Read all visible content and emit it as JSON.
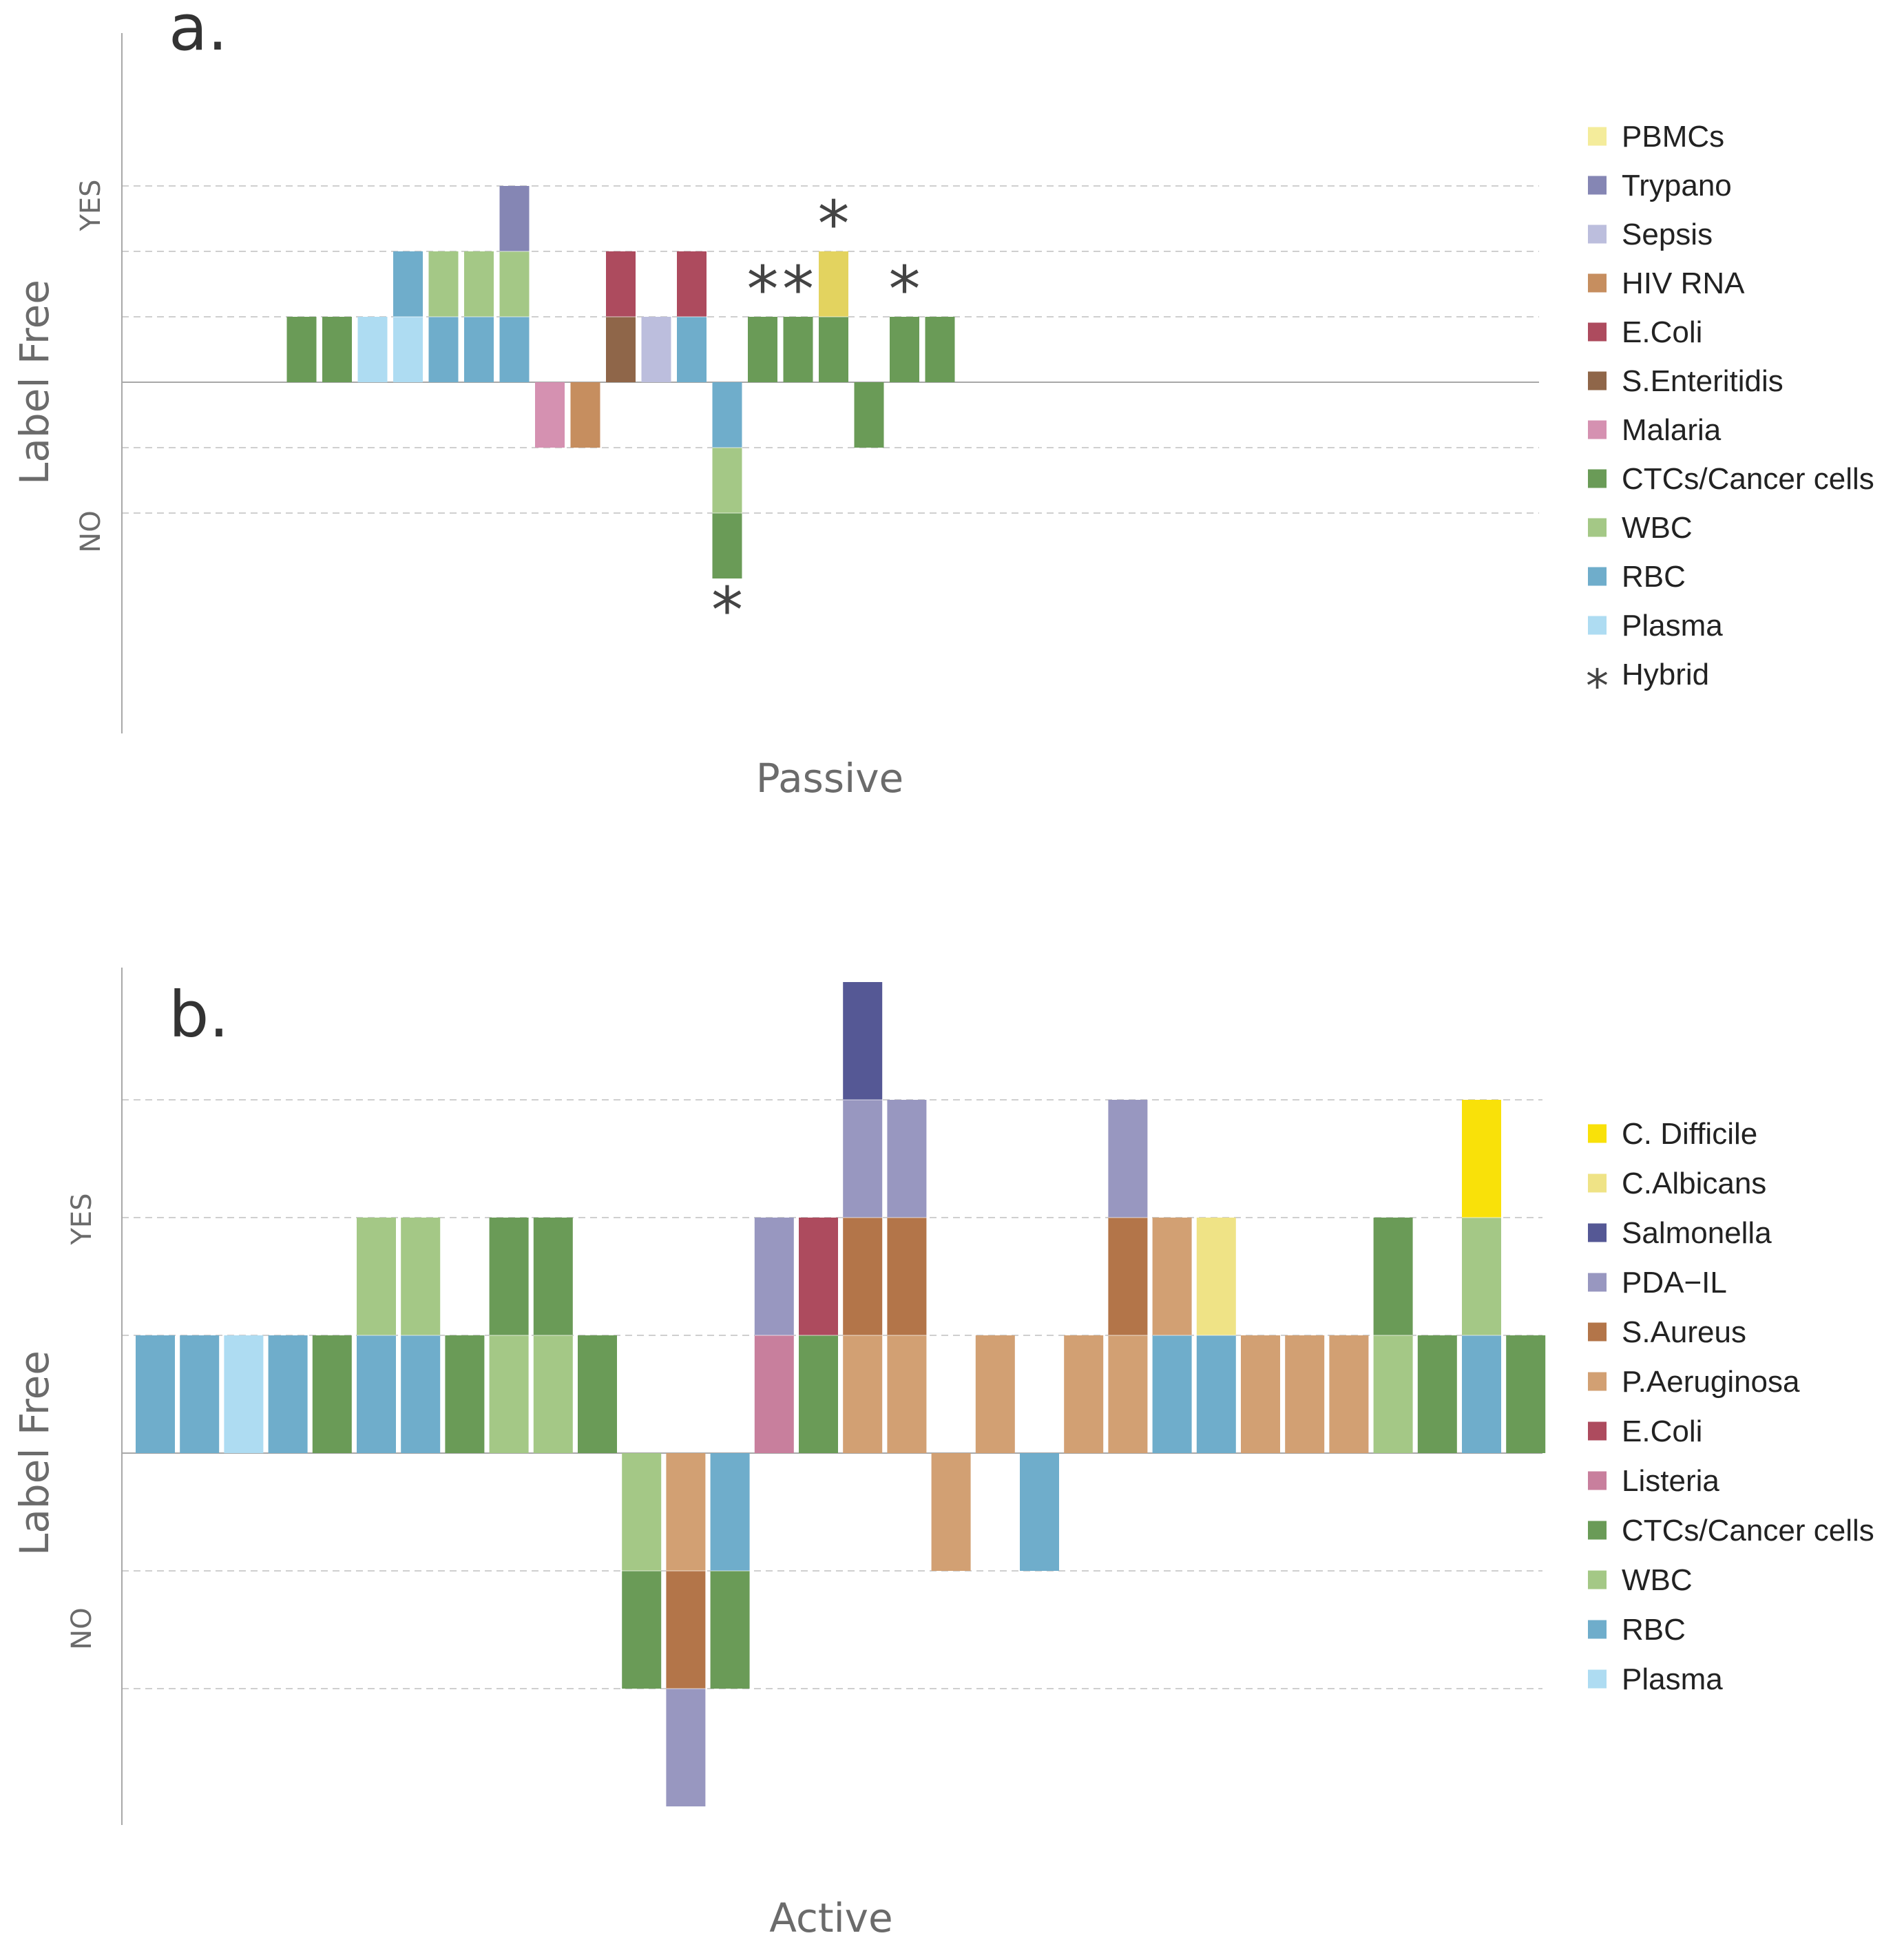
{
  "colors": {
    "PBMCs": "#f4ec9b",
    "Trypano": "#8586b4",
    "Sepsis": "#bcbedd",
    "HIV RNA": "#c68e5f",
    "E.Coli": "#ad4b5e",
    "S.Enteritidis": "#8f6649",
    "Malaria": "#d591b1",
    "CTCs/Cancer cells": "#6a9b57",
    "WBC": "#a4c886",
    "RBC": "#6fadcb",
    "Plasma": "#aedcf2",
    "PBMCs_hybrid": "#e3d35f",
    "C. Difficile": "#f9e109",
    "C.Albicans": "#efe386",
    "Salmonella": "#555895",
    "PDA−IL": "#9897c0",
    "S.Aureus": "#b37549",
    "P.Aeruginosa": "#d2a073",
    "Listeria": "#c87f9d",
    "axis": "#a8a8a8",
    "grid": "#cfcfcf"
  },
  "chart_data": [
    {
      "panel": "a.",
      "type": "bar",
      "stacked": true,
      "xlabel": "Passive",
      "ylabel": "Label Free",
      "y_ticks": [
        "YES",
        "NO"
      ],
      "ylim": [
        -3,
        3
      ],
      "n_slots": 22,
      "legend_position": "right",
      "legend": [
        {
          "label": "PBMCs",
          "color_key": "PBMCs"
        },
        {
          "label": "Trypano",
          "color_key": "Trypano"
        },
        {
          "label": "Sepsis",
          "color_key": "Sepsis"
        },
        {
          "label": "HIV RNA",
          "color_key": "HIV RNA"
        },
        {
          "label": "E.Coli",
          "color_key": "E.Coli"
        },
        {
          "label": "S.Enteritidis",
          "color_key": "S.Enteritidis"
        },
        {
          "label": "Malaria",
          "color_key": "Malaria"
        },
        {
          "label": "CTCs/Cancer cells",
          "color_key": "CTCs/Cancer cells"
        },
        {
          "label": "WBC",
          "color_key": "WBC"
        },
        {
          "label": "RBC",
          "color_key": "RBC"
        },
        {
          "label": "Plasma",
          "color_key": "Plasma"
        },
        {
          "label": "Hybrid",
          "marker": "*"
        }
      ],
      "bars": [
        {
          "slot": 3,
          "stack": [
            "CTCs/Cancer cells"
          ]
        },
        {
          "slot": 4,
          "stack": [
            "CTCs/Cancer cells"
          ]
        },
        {
          "slot": 5,
          "stack": [
            "Plasma"
          ]
        },
        {
          "slot": 6,
          "stack": [
            "Plasma",
            "RBC"
          ]
        },
        {
          "slot": 7,
          "stack": [
            "RBC",
            "WBC"
          ]
        },
        {
          "slot": 8,
          "stack": [
            "RBC",
            "WBC"
          ]
        },
        {
          "slot": 9,
          "stack": [
            "RBC",
            "WBC",
            "Trypano"
          ]
        },
        {
          "slot": 10,
          "stack": [
            "Malaria"
          ],
          "direction": "down"
        },
        {
          "slot": 11,
          "stack": [
            "HIV RNA"
          ],
          "direction": "down"
        },
        {
          "slot": 12,
          "stack": [
            "S.Enteritidis",
            "E.Coli"
          ]
        },
        {
          "slot": 13,
          "stack": [
            "Sepsis"
          ]
        },
        {
          "slot": 14,
          "stack": [
            "RBC",
            "E.Coli"
          ]
        },
        {
          "slot": 15,
          "stack": [
            "RBC",
            "WBC",
            "CTCs/Cancer cells"
          ],
          "direction": "down",
          "hybrid": true
        },
        {
          "slot": 16,
          "stack": [
            "CTCs/Cancer cells"
          ],
          "hybrid": true
        },
        {
          "slot": 17,
          "stack": [
            "CTCs/Cancer cells"
          ],
          "hybrid": true
        },
        {
          "slot": 18,
          "stack": [
            "CTCs/Cancer cells",
            "PBMCs_hybrid"
          ],
          "hybrid": true
        },
        {
          "slot": 19,
          "stack": [
            "CTCs/Cancer cells"
          ],
          "direction": "down"
        },
        {
          "slot": 20,
          "stack": [
            "CTCs/Cancer cells"
          ],
          "hybrid": true
        },
        {
          "slot": 21,
          "stack": [
            "CTCs/Cancer cells"
          ]
        }
      ]
    },
    {
      "panel": "b.",
      "type": "bar",
      "stacked": true,
      "xlabel": "Active",
      "ylabel": "Label Free",
      "y_ticks": [
        "YES",
        "NO"
      ],
      "ylim": [
        -3,
        3
      ],
      "n_slots": 32,
      "legend_position": "right",
      "legend": [
        {
          "label": "C. Difficile",
          "color_key": "C. Difficile"
        },
        {
          "label": "C.Albicans",
          "color_key": "C.Albicans"
        },
        {
          "label": "Salmonella",
          "color_key": "Salmonella"
        },
        {
          "label": "PDA−IL",
          "color_key": "PDA−IL"
        },
        {
          "label": "S.Aureus",
          "color_key": "S.Aureus"
        },
        {
          "label": "P.Aeruginosa",
          "color_key": "P.Aeruginosa"
        },
        {
          "label": "E.Coli",
          "color_key": "E.Coli"
        },
        {
          "label": "Listeria",
          "color_key": "Listeria"
        },
        {
          "label": "CTCs/Cancer cells",
          "color_key": "CTCs/Cancer cells"
        },
        {
          "label": "WBC",
          "color_key": "WBC"
        },
        {
          "label": "RBC",
          "color_key": "RBC"
        },
        {
          "label": "Plasma",
          "color_key": "Plasma"
        }
      ],
      "bars": [
        {
          "slot": 0,
          "stack": [
            "RBC"
          ]
        },
        {
          "slot": 1,
          "stack": [
            "RBC"
          ]
        },
        {
          "slot": 2,
          "stack": [
            "Plasma"
          ]
        },
        {
          "slot": 3,
          "stack": [
            "RBC"
          ]
        },
        {
          "slot": 4,
          "stack": [
            "CTCs/Cancer cells"
          ]
        },
        {
          "slot": 5,
          "stack": [
            "RBC",
            "WBC"
          ]
        },
        {
          "slot": 6,
          "stack": [
            "RBC",
            "WBC"
          ]
        },
        {
          "slot": 7,
          "stack": [
            "CTCs/Cancer cells"
          ]
        },
        {
          "slot": 8,
          "stack": [
            "WBC",
            "CTCs/Cancer cells"
          ]
        },
        {
          "slot": 9,
          "stack": [
            "WBC",
            "CTCs/Cancer cells"
          ]
        },
        {
          "slot": 10,
          "stack": [
            "CTCs/Cancer cells"
          ]
        },
        {
          "slot": 11,
          "stack": [
            "WBC",
            "CTCs/Cancer cells"
          ],
          "direction": "down"
        },
        {
          "slot": 12,
          "stack": [
            "P.Aeruginosa",
            "S.Aureus",
            "PDA−IL"
          ],
          "direction": "down"
        },
        {
          "slot": 13,
          "stack": [
            "RBC",
            "CTCs/Cancer cells"
          ],
          "direction": "down"
        },
        {
          "slot": 14,
          "stack": [
            "Listeria",
            "PDA−IL"
          ]
        },
        {
          "slot": 15,
          "stack": [
            "CTCs/Cancer cells",
            "E.Coli"
          ]
        },
        {
          "slot": 16,
          "stack": [
            "P.Aeruginosa",
            "S.Aureus",
            "PDA−IL",
            "Salmonella"
          ]
        },
        {
          "slot": 17,
          "stack": [
            "P.Aeruginosa",
            "S.Aureus",
            "PDA−IL"
          ]
        },
        {
          "slot": 18,
          "stack": [
            "P.Aeruginosa"
          ],
          "direction": "down"
        },
        {
          "slot": 19,
          "stack": [
            "P.Aeruginosa"
          ]
        },
        {
          "slot": 20,
          "stack": [
            "RBC"
          ],
          "direction": "down"
        },
        {
          "slot": 21,
          "stack": [
            "P.Aeruginosa"
          ]
        },
        {
          "slot": 22,
          "stack": [
            "P.Aeruginosa",
            "S.Aureus",
            "PDA−IL"
          ]
        },
        {
          "slot": 23,
          "stack": [
            "RBC",
            "P.Aeruginosa"
          ]
        },
        {
          "slot": 24,
          "stack": [
            "RBC",
            "C.Albicans"
          ]
        },
        {
          "slot": 25,
          "stack": [
            "P.Aeruginosa"
          ]
        },
        {
          "slot": 26,
          "stack": [
            "P.Aeruginosa"
          ]
        },
        {
          "slot": 27,
          "stack": [
            "P.Aeruginosa"
          ]
        },
        {
          "slot": 28,
          "stack": [
            "WBC",
            "CTCs/Cancer cells"
          ]
        },
        {
          "slot": 29,
          "stack": [
            "CTCs/Cancer cells"
          ]
        },
        {
          "slot": 30,
          "stack": [
            "RBC",
            "WBC",
            "C. Difficile"
          ]
        },
        {
          "slot": 31,
          "stack": [
            "CTCs/Cancer cells"
          ]
        }
      ]
    }
  ]
}
